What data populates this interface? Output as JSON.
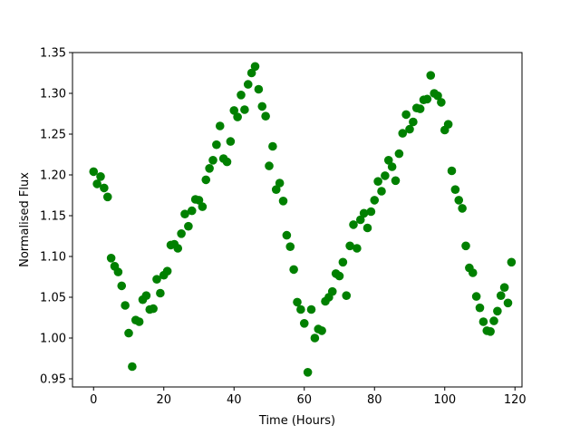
{
  "chart_data": {
    "type": "scatter",
    "title": "",
    "xlabel": "Time (Hours)",
    "ylabel": "Normalised Flux",
    "xlim": [
      -6,
      122
    ],
    "ylim": [
      0.94,
      1.35
    ],
    "xticks": [
      0,
      20,
      40,
      60,
      80,
      100,
      120
    ],
    "yticks": [
      0.95,
      1.0,
      1.05,
      1.1,
      1.15,
      1.2,
      1.25,
      1.3,
      1.35
    ],
    "xtick_labels": [
      "0",
      "20",
      "40",
      "60",
      "80",
      "100",
      "120"
    ],
    "ytick_labels": [
      "0.95",
      "1.00",
      "1.05",
      "1.10",
      "1.15",
      "1.20",
      "1.25",
      "1.30",
      "1.35"
    ],
    "grid": false,
    "marker_color": "#008000",
    "points": [
      [
        0,
        1.204
      ],
      [
        1,
        1.189
      ],
      [
        2,
        1.198
      ],
      [
        3,
        1.184
      ],
      [
        4,
        1.173
      ],
      [
        5,
        1.098
      ],
      [
        6,
        1.088
      ],
      [
        7,
        1.081
      ],
      [
        8,
        1.064
      ],
      [
        9,
        1.04
      ],
      [
        10,
        1.006
      ],
      [
        11,
        0.965
      ],
      [
        12,
        1.022
      ],
      [
        13,
        1.02
      ],
      [
        14,
        1.047
      ],
      [
        15,
        1.052
      ],
      [
        16,
        1.035
      ],
      [
        17,
        1.036
      ],
      [
        18,
        1.072
      ],
      [
        19,
        1.055
      ],
      [
        20,
        1.077
      ],
      [
        21,
        1.082
      ],
      [
        22,
        1.114
      ],
      [
        23,
        1.115
      ],
      [
        24,
        1.11
      ],
      [
        25,
        1.128
      ],
      [
        26,
        1.152
      ],
      [
        27,
        1.137
      ],
      [
        28,
        1.156
      ],
      [
        29,
        1.17
      ],
      [
        30,
        1.169
      ],
      [
        31,
        1.161
      ],
      [
        32,
        1.194
      ],
      [
        33,
        1.208
      ],
      [
        34,
        1.218
      ],
      [
        35,
        1.237
      ],
      [
        36,
        1.26
      ],
      [
        37,
        1.22
      ],
      [
        38,
        1.216
      ],
      [
        39,
        1.241
      ],
      [
        40,
        1.279
      ],
      [
        41,
        1.271
      ],
      [
        42,
        1.298
      ],
      [
        43,
        1.28
      ],
      [
        44,
        1.311
      ],
      [
        45,
        1.325
      ],
      [
        46,
        1.333
      ],
      [
        47,
        1.305
      ],
      [
        48,
        1.284
      ],
      [
        49,
        1.272
      ],
      [
        50,
        1.211
      ],
      [
        51,
        1.235
      ],
      [
        52,
        1.182
      ],
      [
        53,
        1.19
      ],
      [
        54,
        1.168
      ],
      [
        55,
        1.126
      ],
      [
        56,
        1.112
      ],
      [
        57,
        1.084
      ],
      [
        58,
        1.044
      ],
      [
        59,
        1.035
      ],
      [
        60,
        1.018
      ],
      [
        61,
        0.958
      ],
      [
        62,
        1.035
      ],
      [
        63,
        1.0
      ],
      [
        64,
        1.011
      ],
      [
        65,
        1.009
      ],
      [
        66,
        1.045
      ],
      [
        67,
        1.05
      ],
      [
        68,
        1.057
      ],
      [
        69,
        1.079
      ],
      [
        70,
        1.076
      ],
      [
        71,
        1.093
      ],
      [
        72,
        1.052
      ],
      [
        73,
        1.113
      ],
      [
        74,
        1.139
      ],
      [
        75,
        1.11
      ],
      [
        76,
        1.145
      ],
      [
        77,
        1.153
      ],
      [
        78,
        1.135
      ],
      [
        79,
        1.155
      ],
      [
        80,
        1.169
      ],
      [
        81,
        1.192
      ],
      [
        82,
        1.18
      ],
      [
        83,
        1.199
      ],
      [
        84,
        1.218
      ],
      [
        85,
        1.21
      ],
      [
        86,
        1.193
      ],
      [
        87,
        1.226
      ],
      [
        88,
        1.251
      ],
      [
        89,
        1.274
      ],
      [
        90,
        1.256
      ],
      [
        91,
        1.265
      ],
      [
        92,
        1.282
      ],
      [
        93,
        1.281
      ],
      [
        94,
        1.292
      ],
      [
        95,
        1.293
      ],
      [
        96,
        1.322
      ],
      [
        97,
        1.3
      ],
      [
        98,
        1.297
      ],
      [
        99,
        1.289
      ],
      [
        100,
        1.255
      ],
      [
        101,
        1.262
      ],
      [
        102,
        1.205
      ],
      [
        103,
        1.182
      ],
      [
        104,
        1.169
      ],
      [
        105,
        1.159
      ],
      [
        106,
        1.113
      ],
      [
        107,
        1.086
      ],
      [
        108,
        1.08
      ],
      [
        109,
        1.051
      ],
      [
        110,
        1.037
      ],
      [
        111,
        1.02
      ],
      [
        112,
        1.009
      ],
      [
        113,
        1.008
      ],
      [
        114,
        1.021
      ],
      [
        115,
        1.033
      ],
      [
        116,
        1.052
      ],
      [
        117,
        1.062
      ],
      [
        118,
        1.043
      ],
      [
        119,
        1.093
      ]
    ]
  }
}
